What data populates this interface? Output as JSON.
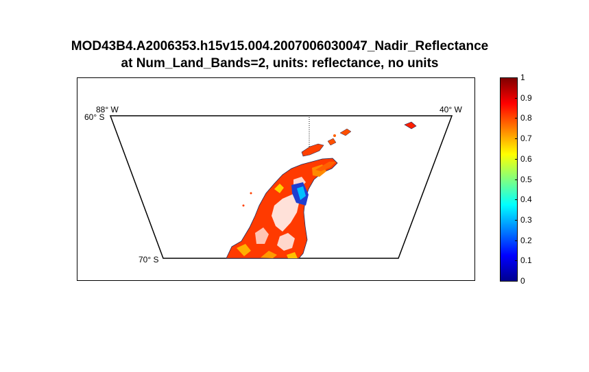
{
  "title": {
    "line1": "MOD43B4.A2006353.h15v15.004.2007006030047_Nadir_Reflectance",
    "line2": "at Num_Land_Bands=2, units: reflectance, no units"
  },
  "map": {
    "labels": {
      "top_left_lon": "88° W",
      "top_left_lat": "60° S",
      "top_right_lon": "40° W",
      "bottom_left_lat": "70° S"
    }
  },
  "colorbar": {
    "min": 0,
    "max": 1,
    "ticks": [
      "0",
      "0.1",
      "0.2",
      "0.3",
      "0.4",
      "0.5",
      "0.6",
      "0.7",
      "0.8",
      "0.9",
      "1"
    ],
    "colormap": [
      "#00008f",
      "#0000ff",
      "#0080ff",
      "#00ffff",
      "#80ff80",
      "#ffff00",
      "#ff8000",
      "#ff0000",
      "#800000"
    ]
  }
}
